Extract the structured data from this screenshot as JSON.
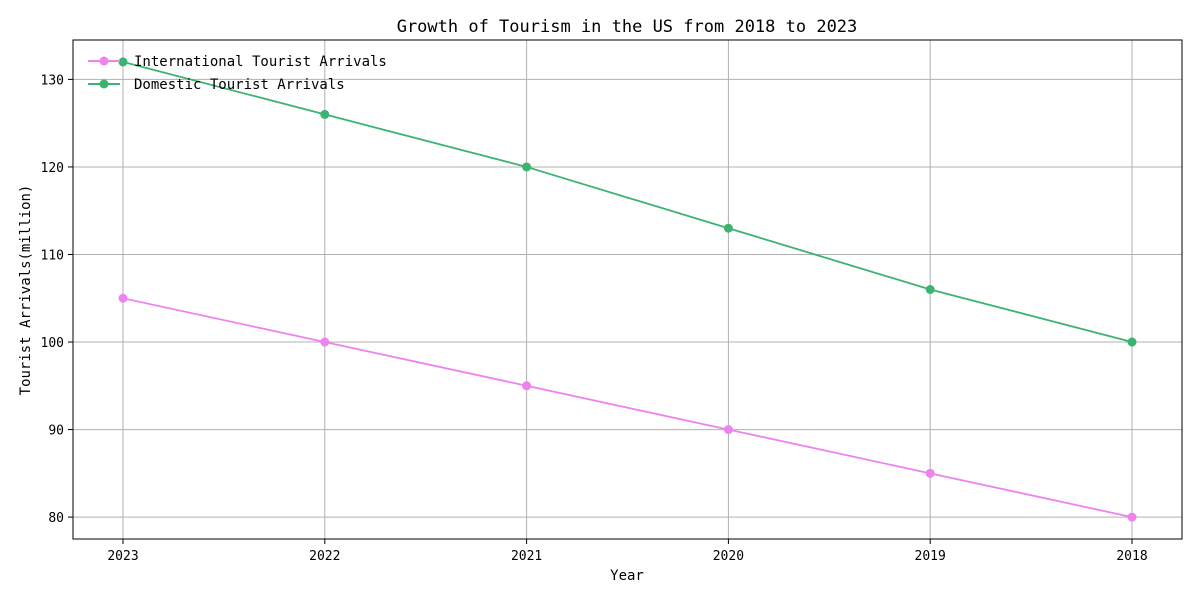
{
  "chart_data": {
    "type": "line",
    "title": "Growth of Tourism in the US from 2018 to 2023",
    "xlabel": "Year",
    "ylabel": "Tourist Arrivals(million)",
    "x": [
      "2023",
      "2022",
      "2021",
      "2020",
      "2019",
      "2018"
    ],
    "ylim": [
      77.5,
      134.5
    ],
    "yticks": [
      80,
      90,
      100,
      110,
      120,
      130
    ],
    "grid": true,
    "legend_position": "top-left",
    "series": [
      {
        "name": "International Tourist Arrivals",
        "color": "#ee82ee",
        "marker": "circle",
        "values": [
          105,
          100,
          95,
          90,
          85,
          80
        ]
      },
      {
        "name": "Domestic Tourist Arrivals",
        "color": "#3cb371",
        "marker": "circle",
        "values": [
          132,
          126,
          120,
          113,
          106,
          100
        ]
      }
    ]
  }
}
